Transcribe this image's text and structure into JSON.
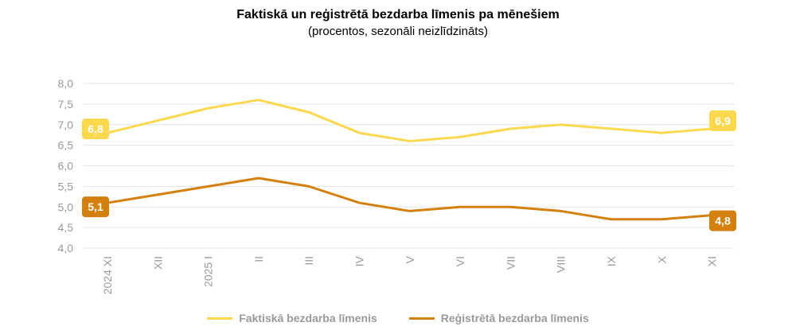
{
  "chart_data": {
    "type": "line",
    "title": "Faktiskā un reģistrētā bezdarba līmenis pa mēnešiem",
    "subtitle": "(procentos, sezonāli neizlīdzināts)",
    "categories": [
      "2024 XI",
      "XII",
      "2025 I",
      "II",
      "III",
      "IV",
      "V",
      "VI",
      "VII",
      "VIII",
      "IX",
      "X",
      "XI"
    ],
    "y_ticks": [
      "4,0",
      "4,5",
      "5,0",
      "5,5",
      "6,0",
      "6,5",
      "7,0",
      "7,5",
      "8,0"
    ],
    "ylim": [
      4.0,
      8.0
    ],
    "grid": true,
    "legend_position": "bottom",
    "series": [
      {
        "name": "Faktiskā bezdarba līmenis",
        "color": "#FBD84E",
        "values": [
          6.8,
          7.1,
          7.4,
          7.6,
          7.3,
          6.8,
          6.6,
          6.7,
          6.9,
          7.0,
          6.9,
          6.8,
          6.9
        ],
        "first_label": "6,8",
        "last_label": "6,9"
      },
      {
        "name": "Reģistrētā bezdarba līmenis",
        "color": "#D4800F",
        "values": [
          5.1,
          5.3,
          5.5,
          5.7,
          5.5,
          5.1,
          4.9,
          5.0,
          5.0,
          4.9,
          4.7,
          4.7,
          4.8
        ],
        "first_label": "5,1",
        "last_label": "4,8"
      }
    ]
  }
}
